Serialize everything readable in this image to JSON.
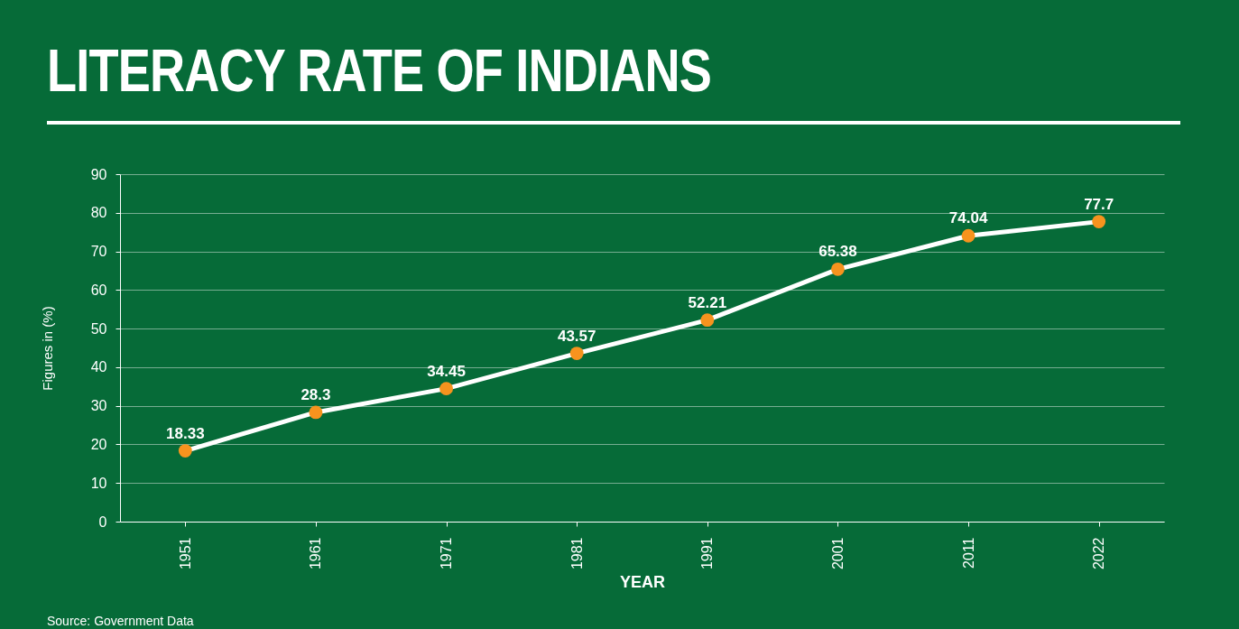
{
  "chart_data": {
    "type": "line",
    "title": "LITERACY RATE OF INDIANS",
    "xlabel": "YEAR",
    "ylabel": "Figures in (%)",
    "categories": [
      "1951",
      "1961",
      "1971",
      "1981",
      "1991",
      "2001",
      "2011",
      "2022"
    ],
    "series": [
      {
        "color": "#ffffff",
        "colors": [
          "#f7931e",
          "#f7931e",
          "#f7931e",
          "#f7931e",
          "#f7931e",
          "#f7931e",
          "#f7931e",
          "#f7931e"
        ],
        "values": [
          18.33,
          28.3,
          34.45,
          43.57,
          52.21,
          65.38,
          74.04,
          77.7
        ]
      }
    ],
    "ylim": [
      0,
      90
    ],
    "yticks": [
      0,
      10,
      20,
      30,
      40,
      50,
      60,
      70,
      80,
      90
    ],
    "grid": "y",
    "marker": "circle",
    "data_labels": true,
    "annotations": [
      "Source: Government Data"
    ]
  }
}
